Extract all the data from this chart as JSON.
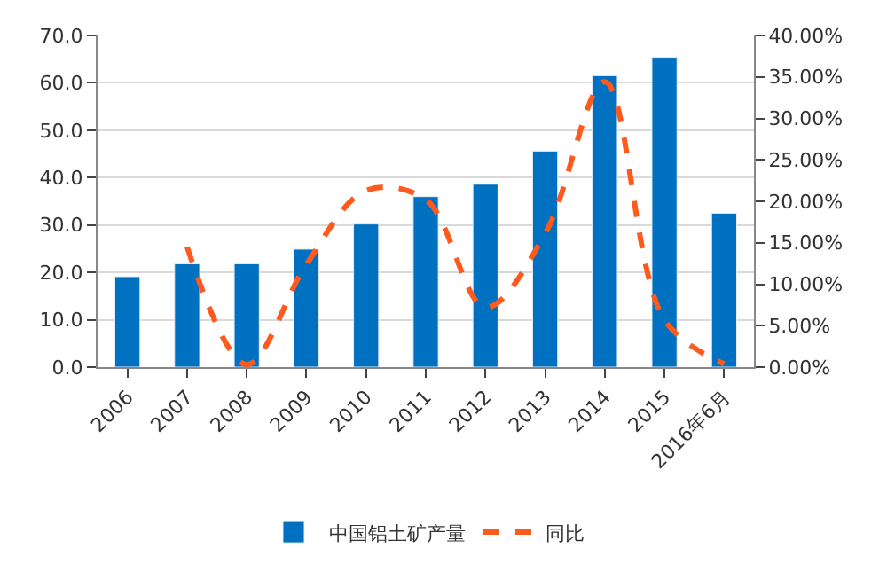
{
  "chart_data": {
    "type": "bar",
    "categories": [
      "2006",
      "2007",
      "2008",
      "2009",
      "2010",
      "2011",
      "2012",
      "2013",
      "2014",
      "2015",
      "2016年6月"
    ],
    "series": [
      {
        "name": "中国铝土矿产量",
        "color": "#0070c0",
        "values": [
          19.1,
          21.8,
          21.8,
          24.9,
          30.2,
          36.0,
          38.6,
          45.6,
          61.5,
          65.4,
          32.5
        ]
      },
      {
        "name": "同比",
        "type": "line",
        "axis": "y2",
        "color": "#ff5a1e",
        "line_style": "dashed",
        "values": [
          null,
          14.5,
          0.3,
          12.4,
          21.3,
          20.2,
          7.2,
          16.1,
          34.4,
          5.7,
          0.4
        ]
      }
    ],
    "ylim": [
      0,
      70
    ],
    "yticks": [
      {
        "value": 0,
        "label": "0.0"
      },
      {
        "value": 10,
        "label": "10.0"
      },
      {
        "value": 20,
        "label": "20.0"
      },
      {
        "value": 30,
        "label": "30.0"
      },
      {
        "value": 40,
        "label": "40.0"
      },
      {
        "value": 50,
        "label": "50.0"
      },
      {
        "value": 60,
        "label": "60.0"
      },
      {
        "value": 70,
        "label": "70.0"
      }
    ],
    "y2lim": [
      0,
      40
    ],
    "y2ticks": [
      {
        "value": 0,
        "label": "0.00%"
      },
      {
        "value": 5,
        "label": "5.00%"
      },
      {
        "value": 10,
        "label": "10.00%"
      },
      {
        "value": 15,
        "label": "15.00%"
      },
      {
        "value": 20,
        "label": "20.00%"
      },
      {
        "value": 25,
        "label": "25.00%"
      },
      {
        "value": 30,
        "label": "30.00%"
      },
      {
        "value": 35,
        "label": "35.00%"
      },
      {
        "value": 40,
        "label": "40.00%"
      }
    ],
    "grid": "y",
    "legend": "bottom"
  }
}
